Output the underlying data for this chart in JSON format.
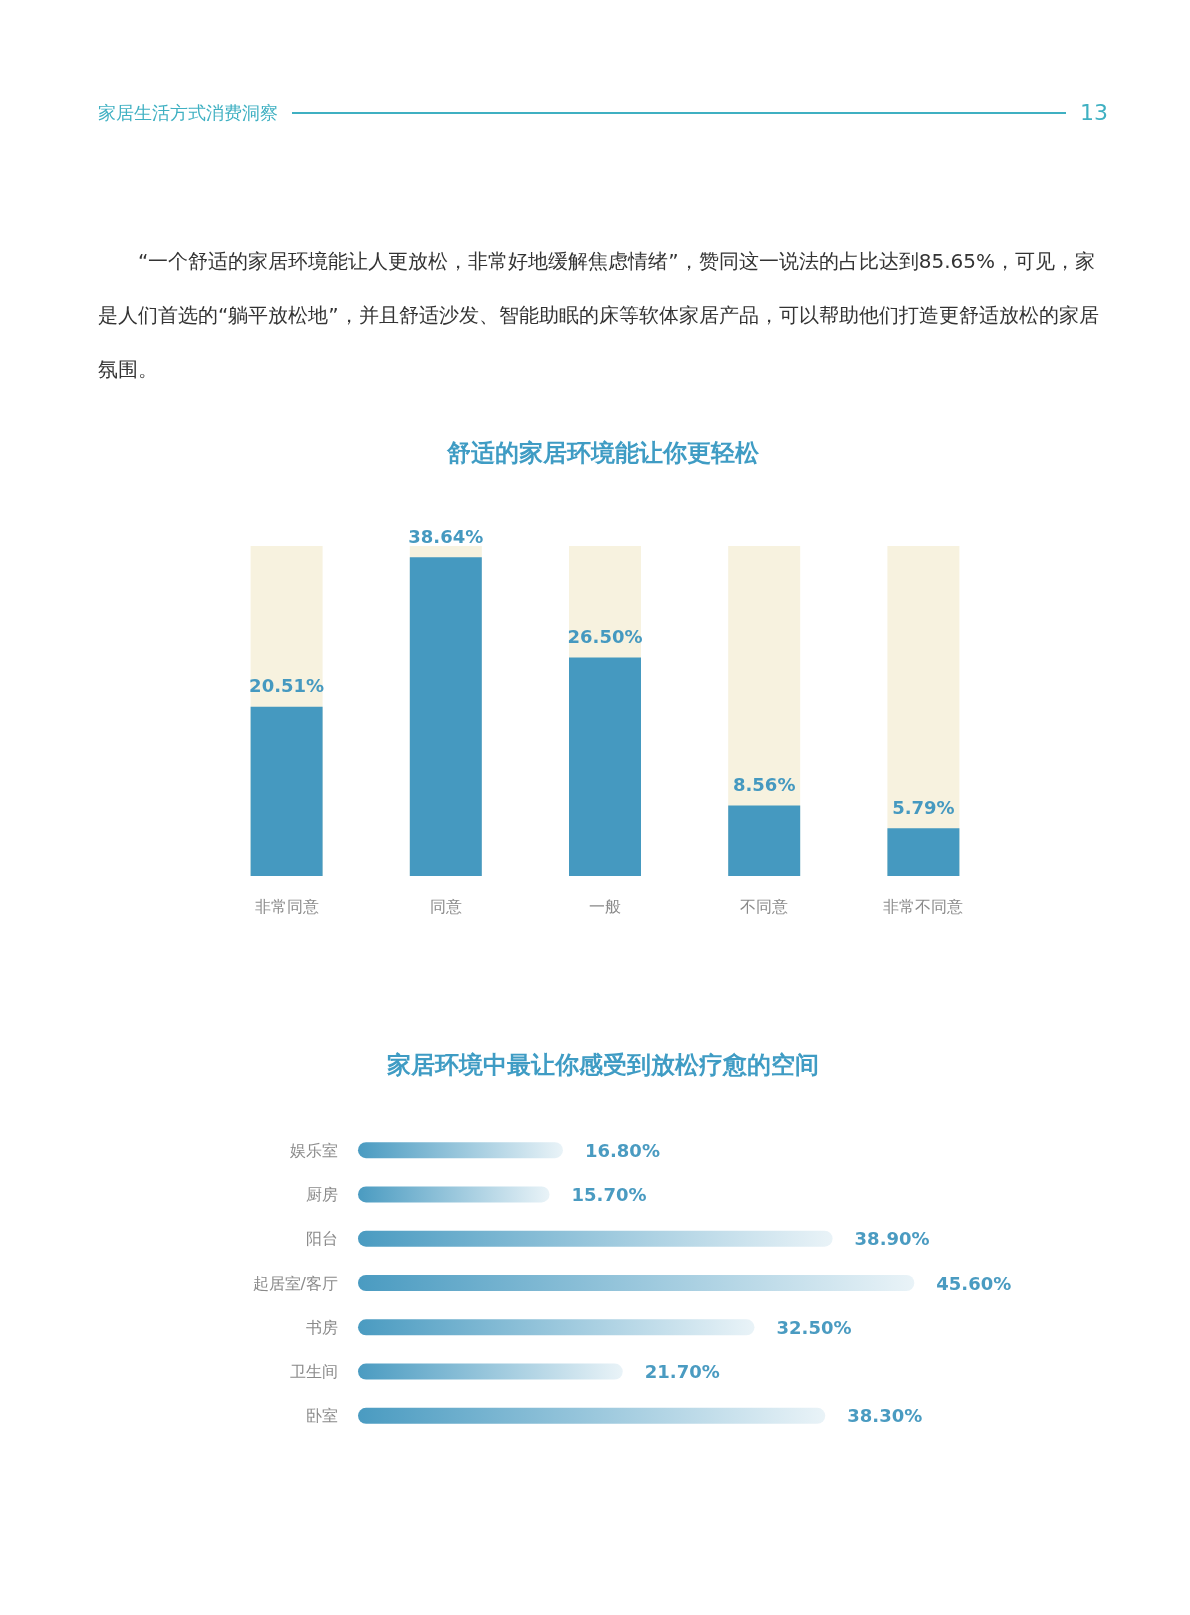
{
  "chart_data": [
    {
      "type": "bar",
      "title": "舒适的家居环境能让你更轻松",
      "categories": [
        "非常同意",
        "同意",
        "一般",
        "不同意",
        "非常不同意"
      ],
      "values": [
        20.51,
        38.64,
        26.5,
        8.56,
        5.79
      ],
      "value_labels": [
        "20.51%",
        "38.64%",
        "26.50%",
        "8.56%",
        "5.79%"
      ],
      "color": "#4599c0",
      "annotations": [
        "家居生活方式消费洞察",
        "13",
        "“一个舒适的家居环境能让人更放松，非常好地缓解焦虑情绪”，赞同这一说法的占比达到85.65%，可见，家是人们首选的“躺平放松地”，并且舒适沙发、智能助眠的床等软体家居产品，可以帮助他们打造更舒适放松的家居氛围。"
      ]
    },
    {
      "type": "bar",
      "orientation": "horizontal",
      "title": "家居环境中最让你感受到放松疗愈的空间",
      "categories": [
        "娱乐室",
        "厨房",
        "阳台",
        "起居室/客厅",
        "书房",
        "卫生间",
        "卧室"
      ],
      "values": [
        16.8,
        15.7,
        38.9,
        45.6,
        32.5,
        21.7,
        38.3
      ],
      "value_labels": [
        "16.80%",
        "15.70%",
        "38.90%",
        "45.60%",
        "32.50%",
        "21.70%",
        "38.30%"
      ],
      "color": "#4a9bc1"
    }
  ]
}
